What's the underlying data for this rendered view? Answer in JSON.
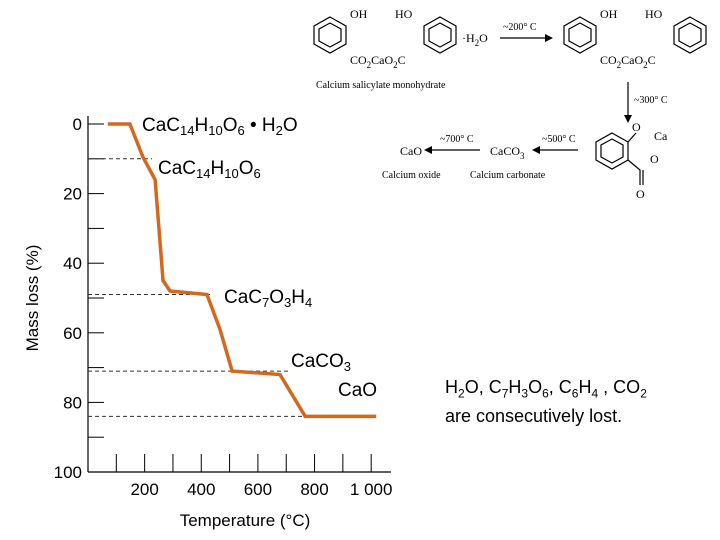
{
  "chart_data": {
    "type": "line",
    "y_label": "Mass loss (%)",
    "x_label": "Temperature (°C)",
    "x": [
      70,
      148,
      194,
      237,
      265,
      290,
      420,
      466,
      509,
      678,
      767,
      1018
    ],
    "series": [
      {
        "color": "#d2691e",
        "values": [
          0,
          0,
          9.5,
          16,
          45,
          48,
          49,
          59,
          71,
          72,
          84,
          84
        ]
      }
    ],
    "xlim": [
      0,
      1070
    ],
    "ylim": [
      0,
      100
    ],
    "y_inverted": true,
    "xticks": [
      200,
      400,
      600,
      800,
      {
        "value": 1000,
        "label": "1 000"
      }
    ],
    "xminor_ticks": [
      100,
      300,
      500,
      700,
      900
    ],
    "yticks": [
      0,
      20,
      40,
      60,
      80,
      100
    ],
    "yminor_ticks": [
      10,
      30,
      50,
      70,
      90
    ],
    "reference_lines": [
      10,
      49,
      71,
      84
    ],
    "annotations": [
      [
        "CaC",
        "14",
        "H",
        "10",
        "O",
        "6",
        " • H",
        "2",
        "O"
      ],
      [
        "CaC",
        "14",
        "H",
        "10",
        "O",
        "6"
      ],
      [
        "CaC",
        "7",
        "O",
        "3",
        "H",
        "4"
      ],
      [
        "CaCO",
        "3"
      ],
      [
        "CaO"
      ]
    ]
  },
  "note": [
    "H",
    "2",
    "O, C",
    "7",
    "H",
    "3",
    "O",
    "6",
    ", C",
    "6",
    "H",
    "4",
    " , CO",
    "2",
    " are consecutively lost."
  ],
  "scheme": {
    "oh": "OH",
    "ho": "HO",
    "salt": [
      "CO",
      "2",
      "CaO",
      "2",
      "C"
    ],
    "water": [
      "·H",
      "2",
      "O"
    ],
    "step1": "~200° C",
    "name1": "Calcium salicylate monohydrate",
    "step2": "~300° C",
    "ring_o": "O",
    "ring_ca": "Ca",
    "step3": "~500° C",
    "carbonate": [
      "CaCO",
      "3"
    ],
    "name3": "Calcium carbonate",
    "step4": "~700° C",
    "oxide": "CaO",
    "name4": "Calcium oxide"
  }
}
